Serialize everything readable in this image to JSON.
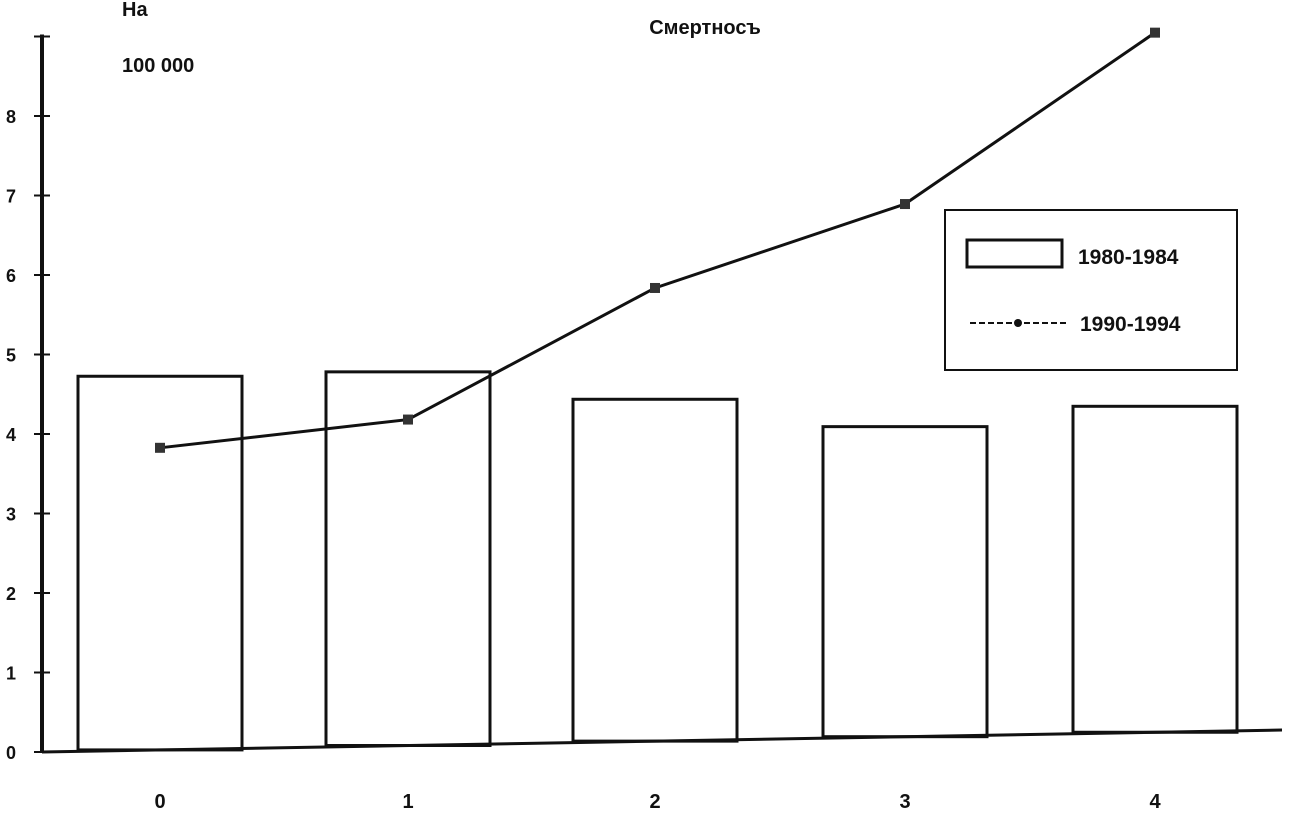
{
  "chart_data": {
    "type": "bar",
    "title": "Смертносъ",
    "ylabel_line1": "На",
    "ylabel_line2": "100 000",
    "xlabel": "",
    "categories": [
      "0",
      "1",
      "2",
      "3",
      "4"
    ],
    "ylim": [
      0,
      9
    ],
    "yticks": [
      0,
      1,
      2,
      3,
      4,
      5,
      6,
      7,
      8,
      9
    ],
    "ytick_labels": [
      "0",
      "1",
      "2",
      "3",
      "4",
      "5",
      "6",
      "7",
      "8",
      ""
    ],
    "grid": false,
    "legend_placement": "right",
    "series": [
      {
        "name": "1980-1984",
        "kind": "bar",
        "values": [
          4.7,
          4.7,
          4.3,
          3.9,
          4.1
        ]
      },
      {
        "name": "1990-1994",
        "kind": "line",
        "values": [
          3.8,
          4.1,
          5.7,
          6.7,
          8.8
        ]
      }
    ],
    "colors": {
      "ink": "#111111",
      "background": "#ffffff"
    }
  }
}
